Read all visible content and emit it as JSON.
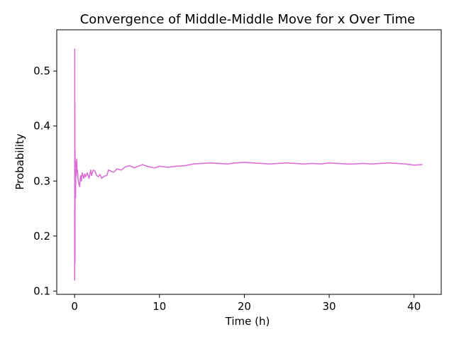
{
  "chart_data": {
    "type": "line",
    "title": "Convergence of Middle-Middle Move for x Over Time",
    "xlabel": "Time (h)",
    "ylabel": "Probability",
    "xlim": [
      -2.1,
      43.2
    ],
    "ylim": [
      0.094,
      0.575
    ],
    "xticks": [
      0,
      10,
      20,
      30,
      40
    ],
    "yticks": [
      0.1,
      0.2,
      0.3,
      0.4,
      0.5
    ],
    "xtick_labels": [
      "0",
      "10",
      "20",
      "30",
      "40"
    ],
    "ytick_labels": [
      "0.1",
      "0.2",
      "0.3",
      "0.4",
      "0.5"
    ],
    "grid": false,
    "legend": "none",
    "series": [
      {
        "color": "#da70d6",
        "x": [
          0,
          0.01,
          0.02,
          0.03,
          0.04,
          0.05,
          0.06,
          0.07,
          0.08,
          0.09,
          0.1,
          0.12,
          0.15,
          0.2,
          0.25,
          0.3,
          0.35,
          0.4,
          0.45,
          0.5,
          0.6,
          0.7,
          0.8,
          0.9,
          1.0,
          1.1,
          1.2,
          1.3,
          1.5,
          1.7,
          1.9,
          2.0,
          2.2,
          2.4,
          2.6,
          2.8,
          3.0,
          3.2,
          3.5,
          3.8,
          4.0,
          4.3,
          4.6,
          5.0,
          5.5,
          6.0,
          6.5,
          7.0,
          7.5,
          8.0,
          8.5,
          9.0,
          9.5,
          10,
          11,
          12,
          13,
          14,
          15,
          16,
          17,
          18,
          19,
          20,
          21,
          22,
          23,
          24,
          25,
          26,
          27,
          28,
          29,
          30,
          31,
          32,
          33,
          34,
          35,
          36,
          37,
          38,
          39,
          40,
          41
        ],
        "y": [
          0.25,
          0.12,
          0.54,
          0.2,
          0.44,
          0.15,
          0.355,
          0.3,
          0.33,
          0.28,
          0.325,
          0.27,
          0.335,
          0.31,
          0.34,
          0.315,
          0.32,
          0.305,
          0.3,
          0.295,
          0.29,
          0.31,
          0.3,
          0.315,
          0.31,
          0.305,
          0.313,
          0.308,
          0.315,
          0.305,
          0.32,
          0.31,
          0.32,
          0.318,
          0.31,
          0.308,
          0.312,
          0.305,
          0.309,
          0.31,
          0.32,
          0.318,
          0.316,
          0.322,
          0.32,
          0.326,
          0.328,
          0.324,
          0.327,
          0.33,
          0.327,
          0.325,
          0.324,
          0.327,
          0.325,
          0.327,
          0.328,
          0.331,
          0.332,
          0.333,
          0.332,
          0.331,
          0.333,
          0.334,
          0.333,
          0.332,
          0.331,
          0.332,
          0.333,
          0.332,
          0.331,
          0.332,
          0.331,
          0.333,
          0.332,
          0.331,
          0.331,
          0.332,
          0.331,
          0.332,
          0.333,
          0.332,
          0.331,
          0.329,
          0.33
        ]
      }
    ]
  }
}
